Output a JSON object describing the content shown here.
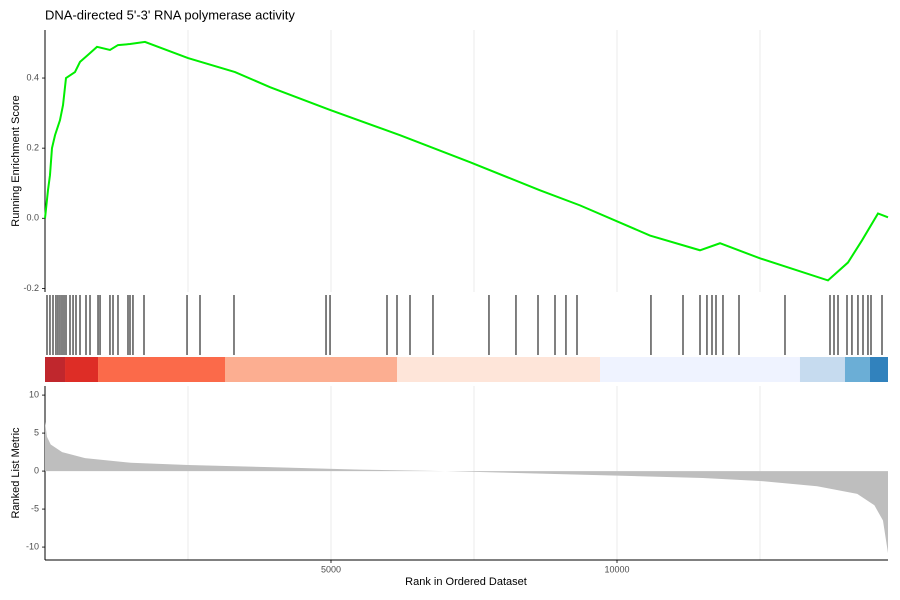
{
  "chart_data": [
    {
      "type": "line",
      "title": "DNA-directed 5'-3' RNA polymerase activity",
      "ylabel": "Running Enrichment Score",
      "x": [
        0,
        52,
        87,
        122,
        175,
        262,
        315,
        367,
        524,
        612,
        752,
        909,
        1136,
        1276,
        1486,
        1748,
        2500,
        3322,
        3934,
        4983,
        6206,
        7430,
        8654,
        9353,
        10577,
        11451,
        11801,
        12500,
        13689,
        14038,
        14283,
        14563,
        14738
      ],
      "values": [
        0.0,
        0.08,
        0.123,
        0.2,
        0.237,
        0.28,
        0.323,
        0.4,
        0.417,
        0.446,
        0.466,
        0.489,
        0.48,
        0.494,
        0.497,
        0.503,
        0.457,
        0.417,
        0.374,
        0.309,
        0.237,
        0.16,
        0.08,
        0.037,
        -0.049,
        -0.091,
        -0.071,
        -0.114,
        -0.177,
        -0.126,
        -0.063,
        0.014,
        0.003
      ],
      "color": "#00ee00",
      "xlim": [
        0,
        14738
      ],
      "ylim": [
        -0.21,
        0.537
      ],
      "yticks": [
        0.4,
        0.2,
        {
          "value": 0,
          "label": "0.0"
        },
        -0.2
      ],
      "xgrid": [
        2500,
        5000,
        7500,
        10000,
        12500
      ]
    },
    {
      "type": "barcode",
      "xlim": [
        0,
        14738
      ],
      "color": "#000000",
      "hits": [
        35,
        87,
        140,
        192,
        227,
        262,
        297,
        332,
        367,
        437,
        490,
        542,
        612,
        717,
        787,
        927,
        962,
        1136,
        1189,
        1276,
        1451,
        1486,
        1538,
        1731,
        2483,
        2710,
        3304,
        4913,
        4983,
        5979,
        6154,
        6381,
        6783,
        7762,
        8234,
        8619,
        8916,
        9108,
        9301,
        10594,
        11154,
        11451,
        11573,
        11661,
        11731,
        11853,
        12133,
        12937,
        13724,
        13794,
        13864,
        14021,
        14108,
        14213,
        14301,
        14388,
        14441,
        14633
      ],
      "color_bar": {
        "breaks": [
          0,
          350,
          927,
          3147,
          6154,
          9703,
          13199,
          13986,
          14423,
          14738
        ],
        "colors": [
          "#c0272d",
          "#de2d26",
          "#fb6a4a",
          "#fcae91",
          "#fee5d9",
          "#eff3ff",
          "#c6dbef",
          "#6baed6",
          "#3182bd"
        ]
      }
    },
    {
      "type": "area",
      "ylabel": "Ranked List Metric",
      "xlabel": "Rank in Ordered Dataset",
      "x": [
        0,
        35,
        100,
        300,
        700,
        1500,
        2500,
        4000,
        5500,
        7000,
        8500,
        10000,
        11500,
        12500,
        13500,
        14200,
        14500,
        14650,
        14738
      ],
      "values": [
        6.5,
        4.5,
        3.5,
        2.5,
        1.7,
        1.1,
        0.8,
        0.5,
        0.2,
        0,
        -0.3,
        -0.6,
        -0.9,
        -1.3,
        -2.0,
        -3.0,
        -4.5,
        -6.5,
        -10.8
      ],
      "color": "#bebebe",
      "xlim": [
        0,
        14738
      ],
      "ylim": [
        -11.7,
        11.2
      ],
      "yticks": [
        10,
        5,
        0,
        -5,
        -10
      ],
      "xticks": [
        5000,
        10000
      ],
      "xgrid": [
        2500,
        5000,
        7500,
        10000,
        12500
      ]
    }
  ]
}
